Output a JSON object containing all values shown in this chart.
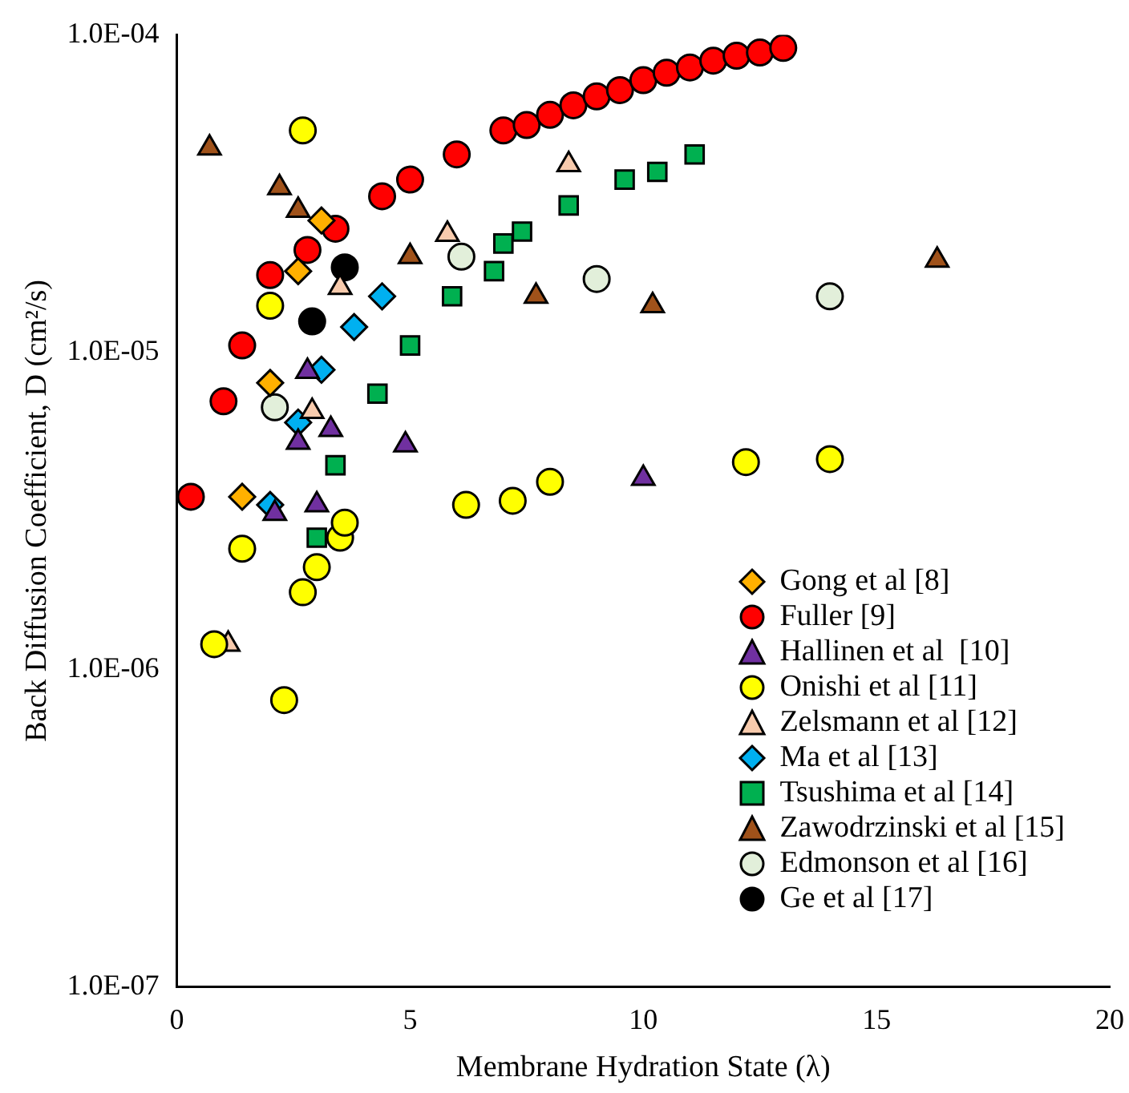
{
  "chart_data": {
    "type": "scatter",
    "xlabel": "Membrane Hydration State (λ)",
    "ylabel": "Back Diffusion Coefficient, D (cm²/s)",
    "log": "y",
    "xlim": [
      0,
      20
    ],
    "xticks": [
      0,
      5,
      10,
      15,
      20
    ],
    "ylim": [
      1e-07,
      0.0001
    ],
    "yticks": [
      {
        "value": 1e-07,
        "label": "1.0E-07"
      },
      {
        "value": 1e-06,
        "label": "1.0E-06"
      },
      {
        "value": 1e-05,
        "label": "1.0E-05"
      },
      {
        "value": 0.0001,
        "label": "1.0E-04"
      }
    ],
    "grid": false,
    "legend": "bottom right",
    "series": [
      {
        "name": "Gong et al [8]",
        "color": "#ffb000",
        "marker": "diamond",
        "x": [
          1.4,
          2.0,
          2.6,
          3.1
        ],
        "values": [
          3.5e-06,
          8e-06,
          1.8e-05,
          2.6e-05
        ]
      },
      {
        "name": "Fuller [9]",
        "color": "#ff0000",
        "marker": "circle",
        "x": [
          0.3,
          1.0,
          1.4,
          2.0,
          2.8,
          3.4,
          4.4,
          5.0,
          6.0,
          7.0,
          7.5,
          8.0,
          8.5,
          9.0,
          9.5,
          10.0,
          10.5,
          11.0,
          11.5,
          12.0,
          12.5,
          13.0
        ],
        "values": [
          3.5e-06,
          7e-06,
          1.05e-05,
          1.75e-05,
          2.1e-05,
          2.45e-05,
          3.1e-05,
          3.5e-05,
          4.2e-05,
          5e-05,
          5.2e-05,
          5.6e-05,
          6e-05,
          6.4e-05,
          6.7e-05,
          7.2e-05,
          7.6e-05,
          7.9e-05,
          8.3e-05,
          8.6e-05,
          8.8e-05,
          9.1e-05
        ]
      },
      {
        "name": "Hallinen et al  [10]",
        "color": "#7030a0",
        "marker": "triangle",
        "x": [
          2.1,
          2.6,
          2.8,
          3.0,
          3.3,
          4.9,
          10.0
        ],
        "values": [
          3.1e-06,
          5.2e-06,
          8.7e-06,
          3.3e-06,
          5.7e-06,
          5.1e-06,
          4e-06
        ]
      },
      {
        "name": "Onishi et al [11]",
        "color": "#ffff00",
        "marker": "circle",
        "x": [
          0.8,
          1.4,
          2.3,
          2.7,
          3.0,
          3.5,
          3.6,
          6.2,
          7.2,
          8.0,
          12.2,
          14.0,
          2.0,
          2.7
        ],
        "values": [
          1.2e-06,
          2.4e-06,
          8e-07,
          1.75e-06,
          2.1e-06,
          2.6e-06,
          2.9e-06,
          3.3e-06,
          3.4e-06,
          3.9e-06,
          4.5e-06,
          4.6e-06,
          1.4e-05,
          5e-05
        ]
      },
      {
        "name": "Zelsmann et al [12]",
        "color": "#f8cbad",
        "marker": "triangle",
        "x": [
          1.1,
          2.9,
          3.5,
          5.8,
          8.4
        ],
        "values": [
          1.2e-06,
          6.5e-06,
          1.6e-05,
          2.35e-05,
          3.9e-05
        ]
      },
      {
        "name": "Ma et al [13]",
        "color": "#00b0f0",
        "marker": "diamond",
        "x": [
          2.0,
          2.6,
          3.1,
          3.8,
          4.4
        ],
        "values": [
          3.3e-06,
          6e-06,
          8.8e-06,
          1.2e-05,
          1.5e-05
        ]
      },
      {
        "name": "Tsushima et al [14]",
        "color": "#00b050",
        "marker": "square",
        "x": [
          3.0,
          3.4,
          4.3,
          5.0,
          5.9,
          6.8,
          7.0,
          7.4,
          8.4,
          9.6,
          10.3,
          11.1
        ],
        "values": [
          2.6e-06,
          4.4e-06,
          7.4e-06,
          1.05e-05,
          1.5e-05,
          1.8e-05,
          2.2e-05,
          2.4e-05,
          2.9e-05,
          3.5e-05,
          3.7e-05,
          4.2e-05
        ]
      },
      {
        "name": "Zawodrzinski et al [15]",
        "color": "#a0521a",
        "marker": "triangle",
        "x": [
          0.7,
          2.2,
          2.6,
          5.0,
          7.7,
          10.2,
          16.3
        ],
        "values": [
          4.4e-05,
          3.3e-05,
          2.8e-05,
          2e-05,
          1.5e-05,
          1.4e-05,
          1.95e-05
        ]
      },
      {
        "name": "Edmonson et al [16]",
        "color": "#e2efda",
        "marker": "circle",
        "x": [
          2.1,
          6.1,
          9.0,
          14.0
        ],
        "values": [
          6.7e-06,
          2e-05,
          1.7e-05,
          1.5e-05
        ]
      },
      {
        "name": "Ge et al [17]",
        "color": "#000000",
        "marker": "circle",
        "x": [
          2.9,
          3.6
        ],
        "values": [
          1.25e-05,
          1.85e-05
        ]
      }
    ]
  }
}
